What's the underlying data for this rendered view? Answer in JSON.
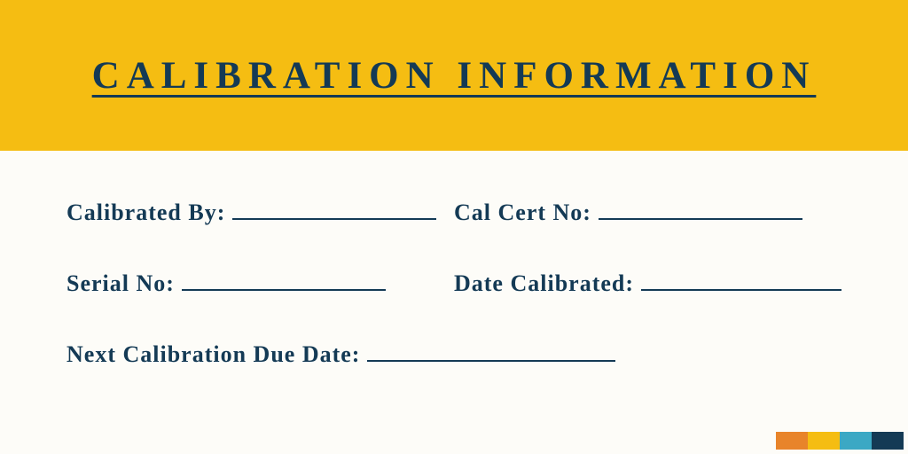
{
  "colors": {
    "header_bg": "#f5bd12",
    "text": "#143a55",
    "body_bg": "#fdfcf8",
    "strip": [
      "#e8842a",
      "#f5bd12",
      "#3ba8c4",
      "#143a55"
    ]
  },
  "header": {
    "title": "CALIBRATION INFORMATION"
  },
  "fields": {
    "calibrated_by": "Calibrated By:",
    "cal_cert_no": "Cal Cert No:",
    "serial_no": "Serial No:",
    "date_calibrated": "Date Calibrated:",
    "next_due": "Next Calibration Due Date:"
  },
  "typography": {
    "title_fontsize": 43,
    "title_letterspacing": 8,
    "label_fontsize": 26
  }
}
